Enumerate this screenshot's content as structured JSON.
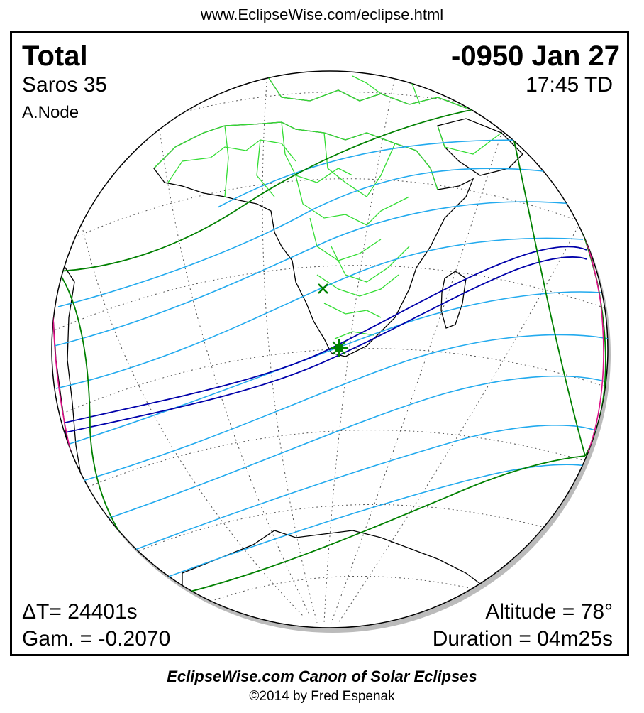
{
  "header": {
    "url": "www.EclipseWise.com/eclipse.html"
  },
  "eclipse": {
    "type": "Total",
    "saros": "Saros  35",
    "node": "A.Node",
    "date": "-0950 Jan 27",
    "time": "17:45 TD",
    "delta_t": "ΔT=  24401s",
    "gamma": "Gam. = -0.2070",
    "altitude": "Altitude = 78°",
    "duration": "Duration = 04m25s"
  },
  "footer": {
    "canon": "EclipseWise.com Canon of Solar Eclipses",
    "copyright": "©2014 by Fred Espenak"
  },
  "colors": {
    "coastline": "#000000",
    "borders": "#33dd33",
    "graticule": "#555555",
    "penumbra_limit": "#008000",
    "penumbra_lines": "#22aaee",
    "umbra_path": "#0000aa",
    "rise_set_curve": "#dd1188",
    "greatest_eclipse_marker": "#008000"
  },
  "markers": {
    "greatest_eclipse": "star-marker",
    "subsolar_point": "x-marker"
  }
}
